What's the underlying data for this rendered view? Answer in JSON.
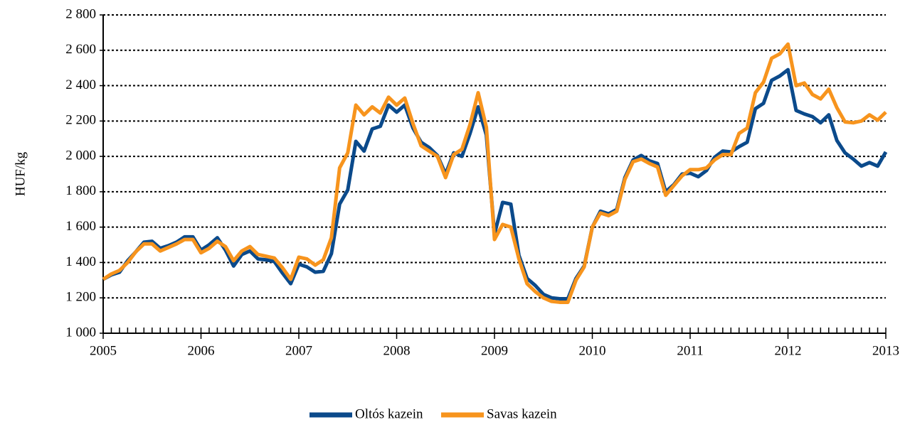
{
  "chart_data": {
    "type": "line",
    "ylabel": "HUF/kg",
    "x": [
      2005,
      2005.083,
      2005.167,
      2005.25,
      2005.333,
      2005.417,
      2005.5,
      2005.583,
      2005.667,
      2005.75,
      2005.833,
      2005.917,
      2006,
      2006.083,
      2006.167,
      2006.25,
      2006.333,
      2006.417,
      2006.5,
      2006.583,
      2006.667,
      2006.75,
      2006.833,
      2006.917,
      2007,
      2007.083,
      2007.167,
      2007.25,
      2007.333,
      2007.417,
      2007.5,
      2007.583,
      2007.667,
      2007.75,
      2007.833,
      2007.917,
      2008,
      2008.083,
      2008.167,
      2008.25,
      2008.333,
      2008.417,
      2008.5,
      2008.583,
      2008.667,
      2008.75,
      2008.833,
      2008.917,
      2009,
      2009.083,
      2009.167,
      2009.25,
      2009.333,
      2009.417,
      2009.5,
      2009.583,
      2009.667,
      2009.75,
      2009.833,
      2009.917,
      2010,
      2010.083,
      2010.167,
      2010.25,
      2010.333,
      2010.417,
      2010.5,
      2010.583,
      2010.667,
      2010.75,
      2010.833,
      2010.917,
      2011,
      2011.083,
      2011.167,
      2011.25,
      2011.333,
      2011.417,
      2011.5,
      2011.583,
      2011.667,
      2011.75,
      2011.833,
      2011.917,
      2012,
      2012.083,
      2012.167,
      2012.25,
      2012.333,
      2012.417,
      2012.5,
      2012.583,
      2012.667,
      2012.75,
      2012.833,
      2012.917,
      2013
    ],
    "series": [
      {
        "name": "Oltós kazein",
        "color": "#0b4a8b",
        "values": [
          1305,
          1330,
          1345,
          1410,
          1460,
          1515,
          1520,
          1480,
          1495,
          1515,
          1545,
          1545,
          1470,
          1500,
          1540,
          1470,
          1380,
          1445,
          1465,
          1420,
          1415,
          1405,
          1340,
          1280,
          1390,
          1375,
          1345,
          1350,
          1450,
          1730,
          1810,
          2085,
          2030,
          2155,
          2170,
          2290,
          2250,
          2290,
          2160,
          2080,
          2050,
          2005,
          1900,
          2020,
          2000,
          2130,
          2280,
          2120,
          1560,
          1740,
          1730,
          1440,
          1310,
          1270,
          1220,
          1200,
          1195,
          1195,
          1310,
          1380,
          1600,
          1690,
          1675,
          1700,
          1880,
          1980,
          2005,
          1975,
          1960,
          1800,
          1840,
          1900,
          1905,
          1885,
          1920,
          1995,
          2030,
          2025,
          2055,
          2080,
          2270,
          2300,
          2430,
          2455,
          2490,
          2260,
          2240,
          2225,
          2190,
          2235,
          2090,
          2020,
          1985,
          1945,
          1965,
          1945,
          2025
        ]
      },
      {
        "name": "Savas kazein",
        "color": "#f7941d",
        "values": [
          1305,
          1335,
          1355,
          1400,
          1460,
          1505,
          1505,
          1465,
          1485,
          1505,
          1530,
          1530,
          1455,
          1480,
          1520,
          1490,
          1410,
          1465,
          1490,
          1445,
          1435,
          1425,
          1370,
          1305,
          1430,
          1420,
          1385,
          1415,
          1540,
          1935,
          2020,
          2290,
          2235,
          2280,
          2245,
          2335,
          2290,
          2330,
          2185,
          2060,
          2030,
          2000,
          1880,
          2010,
          2040,
          2180,
          2360,
          2165,
          1530,
          1615,
          1600,
          1420,
          1280,
          1235,
          1200,
          1180,
          1175,
          1175,
          1300,
          1375,
          1600,
          1680,
          1665,
          1690,
          1870,
          1970,
          1985,
          1960,
          1940,
          1780,
          1835,
          1890,
          1925,
          1925,
          1935,
          1980,
          2010,
          2010,
          2130,
          2160,
          2360,
          2420,
          2555,
          2580,
          2635,
          2400,
          2415,
          2350,
          2325,
          2380,
          2275,
          2195,
          2190,
          2200,
          2235,
          2205,
          2250
        ]
      }
    ],
    "xlim": [
      2005,
      2013
    ],
    "xticks": [
      2005,
      2006,
      2007,
      2008,
      2009,
      2010,
      2011,
      2012,
      2013
    ],
    "ylim": [
      1000,
      2800
    ],
    "yticks": [
      {
        "value": 1000,
        "label": "1 000"
      },
      {
        "value": 1200,
        "label": "1 200"
      },
      {
        "value": 1400,
        "label": "1 400"
      },
      {
        "value": 1600,
        "label": "1 600"
      },
      {
        "value": 1800,
        "label": "1 800"
      },
      {
        "value": 2000,
        "label": "2 000"
      },
      {
        "value": 2200,
        "label": "2 200"
      },
      {
        "value": 2400,
        "label": "2 400"
      },
      {
        "value": 2600,
        "label": "2 600"
      },
      {
        "value": 2800,
        "label": "2 800"
      }
    ],
    "grid": true,
    "legend": "bottom"
  }
}
